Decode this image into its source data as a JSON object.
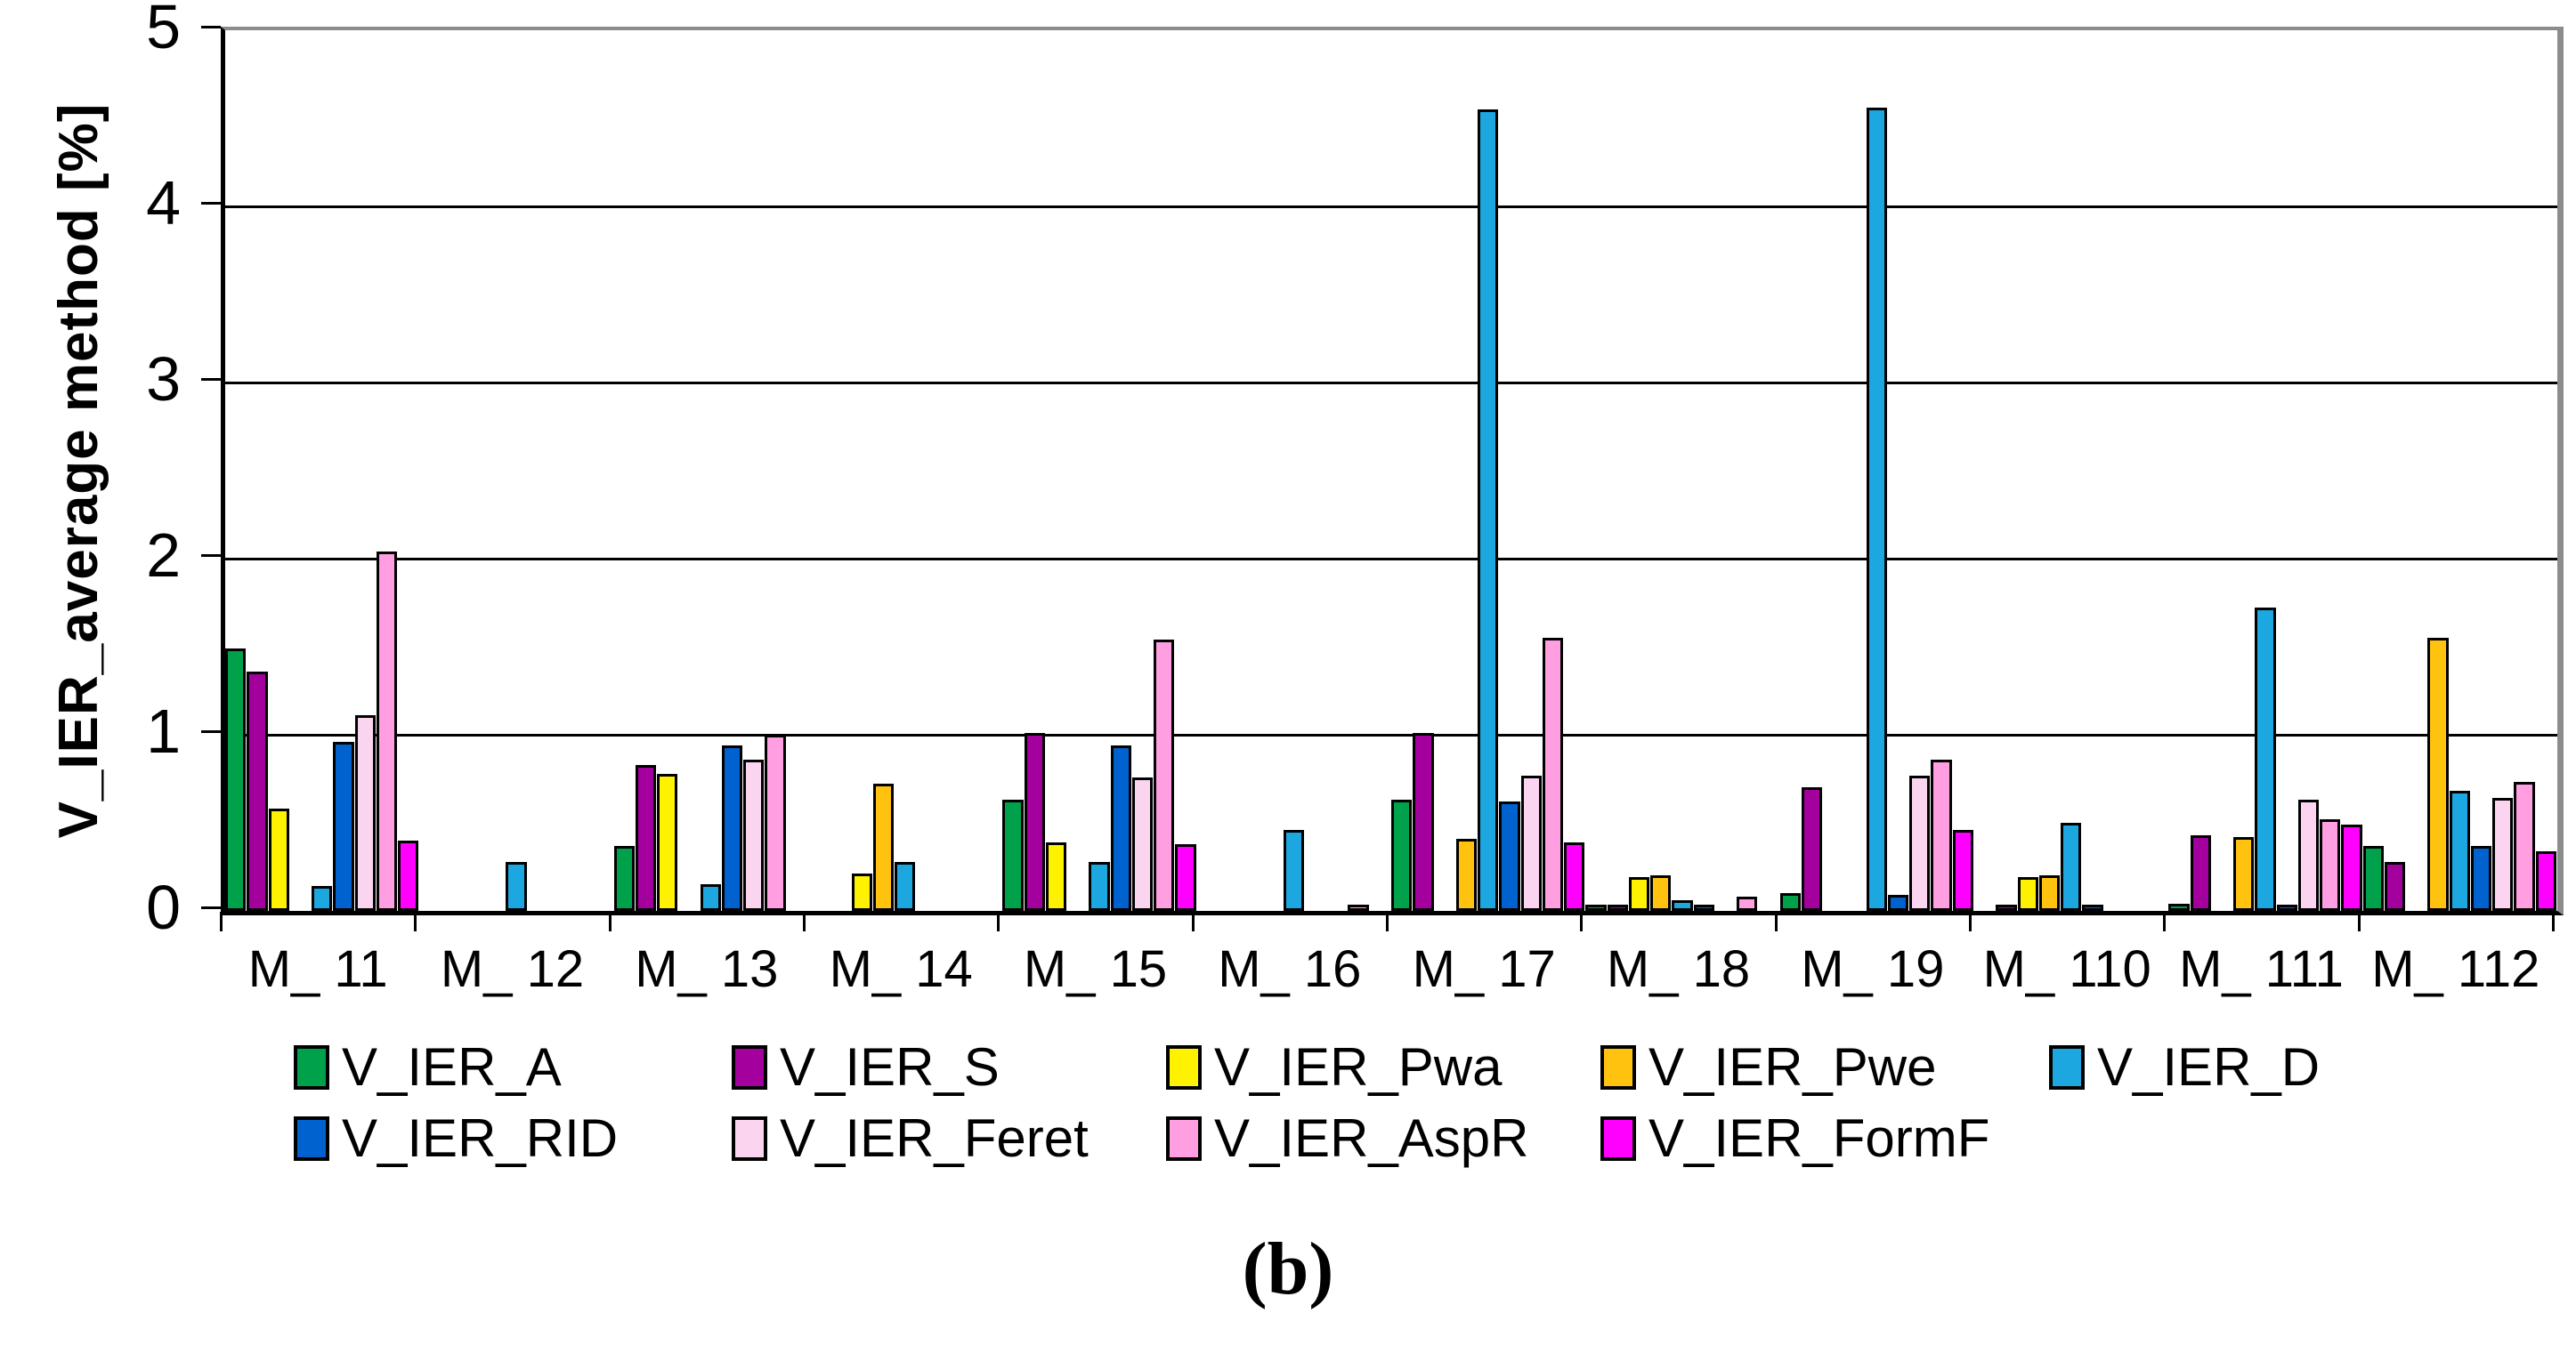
{
  "caption": "(b)",
  "colors": {
    "background": "#FFFFFF",
    "frame_gray": "#8C8C8C",
    "axis_black": "#000000"
  },
  "chart_data": {
    "type": "bar",
    "title": "",
    "xlabel": "",
    "ylabel": "V_IER_average method [%]",
    "ylim": [
      0,
      5
    ],
    "yticks": [
      0,
      1,
      2,
      3,
      4,
      5
    ],
    "grid": "horizontal-black-lines",
    "legend_position": "bottom-two-rows",
    "categories": [
      "M_ 11",
      "M_ 12",
      "M_ 13",
      "M_ 14",
      "M_ 15",
      "M_ 16",
      "M_ 17",
      "M_ 18",
      "M_ 19",
      "M_ 110",
      "M_ 111",
      "M_ 112"
    ],
    "series": [
      {
        "name": "V_IER_A",
        "color": "#00A14B",
        "values": [
          1.49,
          0,
          0.37,
          0,
          0.63,
          0,
          0.63,
          0.01,
          0.1,
          0,
          0.04,
          0.37
        ]
      },
      {
        "name": "V_IER_S",
        "color": "#A3009E",
        "values": [
          1.36,
          0,
          0.83,
          0,
          1.01,
          0,
          1.01,
          0.03,
          0.7,
          0.01,
          0.43,
          0.28
        ]
      },
      {
        "name": "V_IER_Pwa",
        "color": "#FFF200",
        "values": [
          0.58,
          0,
          0.78,
          0.21,
          0.39,
          0,
          0,
          0.19,
          0,
          0.19,
          0,
          0
        ]
      },
      {
        "name": "V_IER_Pwe",
        "color": "#FFC20E",
        "values": [
          0,
          0,
          0,
          0.72,
          0,
          0,
          0.41,
          0.2,
          0,
          0.2,
          0.42,
          1.55
        ]
      },
      {
        "name": "V_IER_D",
        "color": "#1CA7E0",
        "values": [
          0.14,
          0.28,
          0.15,
          0.28,
          0.28,
          0.46,
          4.55,
          0.06,
          4.56,
          0.5,
          1.72,
          0.68
        ]
      },
      {
        "name": "V_IER_RID",
        "color": "#0062CE",
        "values": [
          0.96,
          0,
          0.94,
          0,
          0.94,
          0,
          0.62,
          0.02,
          0.09,
          0.01,
          0.02,
          0.37
        ]
      },
      {
        "name": "V_IER_Feret",
        "color": "#FBD5F0",
        "values": [
          1.11,
          0,
          0.86,
          0,
          0.76,
          0,
          0.77,
          0,
          0.77,
          0,
          0.63,
          0.64
        ]
      },
      {
        "name": "V_IER_AspR",
        "color": "#FF9EE0",
        "values": [
          2.04,
          0,
          1.0,
          0,
          1.54,
          0.02,
          1.55,
          0.08,
          0.86,
          0,
          0.52,
          0.73
        ]
      },
      {
        "name": "V_IER_FormF",
        "color": "#FF00FF",
        "values": [
          0.4,
          0,
          0,
          0,
          0.38,
          0,
          0.39,
          0,
          0.46,
          0,
          0.49,
          0.34
        ]
      }
    ]
  }
}
